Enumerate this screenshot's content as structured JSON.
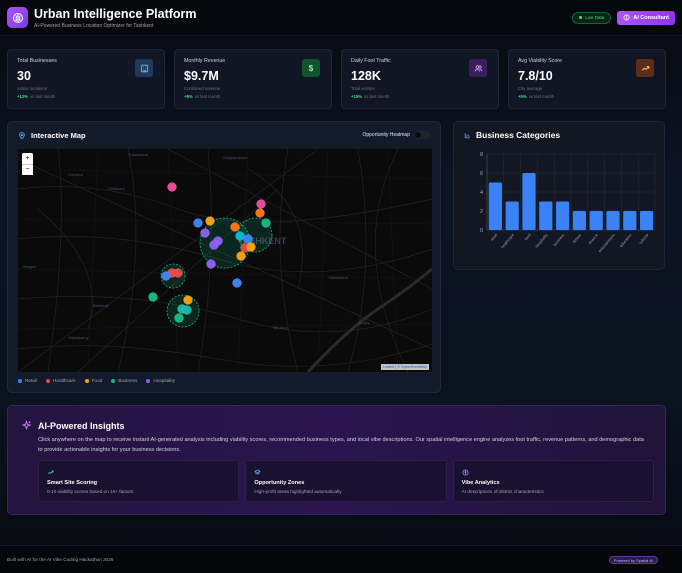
{
  "header": {
    "title": "Urban Intelligence Platform",
    "subtitle": "AI-Powered Business Location Optimizer for Tashkent",
    "live_badge": "Live Data",
    "ai_button": "AI Consultant"
  },
  "stats": [
    {
      "label": "Total Businesses",
      "value": "30",
      "sub": "Active locations",
      "trend": "+12%",
      "trend_suffix": "vs last month",
      "icon": "building-icon",
      "icon_bg": "#1e3a5f"
    },
    {
      "label": "Monthly Revenue",
      "value": "$9.7M",
      "sub": "Combined revenue",
      "trend": "+8%",
      "trend_suffix": "vs last month",
      "icon": "dollar-icon",
      "icon_bg": "#14532d"
    },
    {
      "label": "Daily Foot Traffic",
      "value": "128K",
      "sub": "Total visitors",
      "trend": "+15%",
      "trend_suffix": "vs last month",
      "icon": "users-icon",
      "icon_bg": "#3b1f5c"
    },
    {
      "label": "Avg Viability Score",
      "value": "7.8/10",
      "sub": "City average",
      "trend": "+5%",
      "trend_suffix": "vs last month",
      "icon": "trending-up-icon",
      "icon_bg": "#5a2e16"
    }
  ],
  "map": {
    "title": "Interactive Map",
    "heatmap_label": "Opportunity Heatmap",
    "heatmap_on": false,
    "zoom_in": "+",
    "zoom_out": "−",
    "attribution": "Leaflet | © OpenStreetMap",
    "place_labels": [
      "Yunusobod",
      "Chilonzor",
      "Toshkent",
      "Sergeli",
      "Yakkasaroy",
      "Mirobod",
      "Shayxontohur",
      "Olmazor",
      "Bektemir",
      "Yashnobod"
    ],
    "legend": [
      {
        "label": "Retail",
        "color": "#3b82f6"
      },
      {
        "label": "Healthcare",
        "color": "#ef4444"
      },
      {
        "label": "Food",
        "color": "#f59e0b"
      },
      {
        "label": "Business",
        "color": "#10b981"
      },
      {
        "label": "Hospitality",
        "color": "#8b5cf6"
      }
    ]
  },
  "categories": {
    "title": "Business Categories"
  },
  "chart_data": {
    "type": "bar",
    "title": "Business Categories",
    "categories": [
      "retail",
      "healthcare",
      "food",
      "hospitality",
      "business",
      "fitness",
      "finance",
      "entertainment",
      "education",
      "cultural"
    ],
    "values": [
      5,
      3,
      6,
      3,
      3,
      2,
      2,
      2,
      2,
      2
    ],
    "xlabel": "",
    "ylabel": "",
    "ylim": [
      0,
      8
    ],
    "yticks": [
      0,
      2,
      4,
      6,
      8
    ],
    "grid": true,
    "bar_color": "#3b82f6"
  },
  "insights": {
    "title": "AI-Powered Insights",
    "description": "Click anywhere on the map to receive instant AI-generated analysis including viability scores, recommended business types, and local vibe descriptions. Our spatial intelligence engine analyzes foot traffic, revenue patterns, and demographic data to provide actionable insights for your business decisions.",
    "features": [
      {
        "title": "Smart Site Scoring",
        "desc": "0-10 viability scores based on 15+ factors",
        "icon_color": "#34d399"
      },
      {
        "title": "Opportunity Zones",
        "desc": "High-profit areas highlighted automatically",
        "icon_color": "#60a5fa"
      },
      {
        "title": "Vibe Analytics",
        "desc": "AI descriptions of district characteristics",
        "icon_color": "#c084fc"
      }
    ]
  },
  "footer": {
    "text": "Built with AI for the AI Vibe Coding Hackathon 2026",
    "badge": "Powered by Spatial AI"
  }
}
